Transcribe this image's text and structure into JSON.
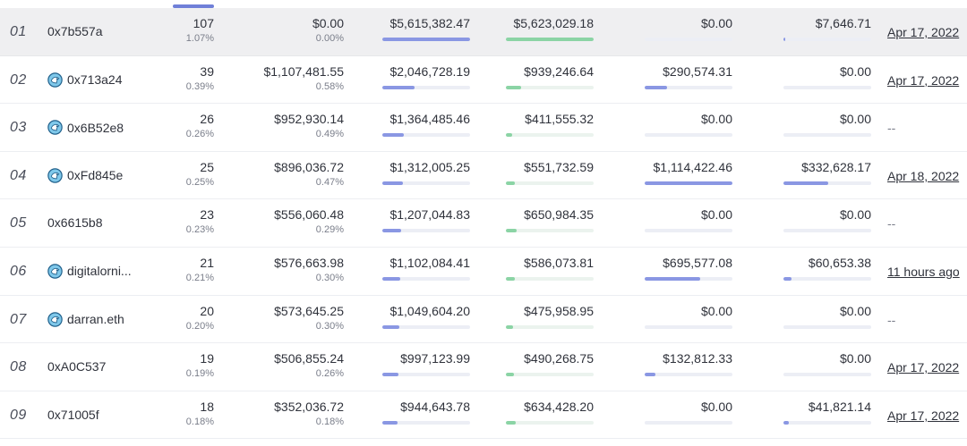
{
  "rows": [
    {
      "rank": "01",
      "address": "0x7b557a",
      "avatar": false,
      "count": "107",
      "count_pct": "1.07%",
      "amount": "$0.00",
      "amount_pct": "0.00%",
      "c1": "$5,615,382.47",
      "c1_fill": 1.0,
      "c2": "$5,623,029.18",
      "c2_fill": 1.0,
      "c3": "$0.00",
      "c3_fill": 0.0,
      "c4": "$7,646.71",
      "c4_fill": 0.02,
      "date": "Apr 17, 2022",
      "highlight": true
    },
    {
      "rank": "02",
      "address": "0x713a24",
      "avatar": true,
      "count": "39",
      "count_pct": "0.39%",
      "amount": "$1,107,481.55",
      "amount_pct": "0.58%",
      "c1": "$2,046,728.19",
      "c1_fill": 0.37,
      "c2": "$939,246.64",
      "c2_fill": 0.17,
      "c3": "$290,574.31",
      "c3_fill": 0.26,
      "c4": "$0.00",
      "c4_fill": 0.0,
      "date": "Apr 17, 2022",
      "highlight": false
    },
    {
      "rank": "03",
      "address": "0x6B52e8",
      "avatar": true,
      "count": "26",
      "count_pct": "0.26%",
      "amount": "$952,930.14",
      "amount_pct": "0.49%",
      "c1": "$1,364,485.46",
      "c1_fill": 0.24,
      "c2": "$411,555.32",
      "c2_fill": 0.07,
      "c3": "$0.00",
      "c3_fill": 0.0,
      "c4": "$0.00",
      "c4_fill": 0.0,
      "date": "--",
      "highlight": false
    },
    {
      "rank": "04",
      "address": "0xFd845e",
      "avatar": true,
      "count": "25",
      "count_pct": "0.25%",
      "amount": "$896,036.72",
      "amount_pct": "0.47%",
      "c1": "$1,312,005.25",
      "c1_fill": 0.23,
      "c2": "$551,732.59",
      "c2_fill": 0.1,
      "c3": "$1,114,422.46",
      "c3_fill": 1.0,
      "c4": "$332,628.17",
      "c4_fill": 0.51,
      "date": "Apr 18, 2022",
      "highlight": false
    },
    {
      "rank": "05",
      "address": "0x6615b8",
      "avatar": false,
      "count": "23",
      "count_pct": "0.23%",
      "amount": "$556,060.48",
      "amount_pct": "0.29%",
      "c1": "$1,207,044.83",
      "c1_fill": 0.21,
      "c2": "$650,984.35",
      "c2_fill": 0.12,
      "c3": "$0.00",
      "c3_fill": 0.0,
      "c4": "$0.00",
      "c4_fill": 0.0,
      "date": "--",
      "highlight": false
    },
    {
      "rank": "06",
      "address": "digitalorni...",
      "avatar": true,
      "count": "21",
      "count_pct": "0.21%",
      "amount": "$576,663.98",
      "amount_pct": "0.30%",
      "c1": "$1,102,084.41",
      "c1_fill": 0.2,
      "c2": "$586,073.81",
      "c2_fill": 0.1,
      "c3": "$695,577.08",
      "c3_fill": 0.63,
      "c4": "$60,653.38",
      "c4_fill": 0.09,
      "date": "11 hours ago",
      "highlight": false
    },
    {
      "rank": "07",
      "address": "darran.eth",
      "avatar": true,
      "count": "20",
      "count_pct": "0.20%",
      "amount": "$573,645.25",
      "amount_pct": "0.30%",
      "c1": "$1,049,604.20",
      "c1_fill": 0.19,
      "c2": "$475,958.95",
      "c2_fill": 0.08,
      "c3": "$0.00",
      "c3_fill": 0.0,
      "c4": "$0.00",
      "c4_fill": 0.0,
      "date": "--",
      "highlight": false
    },
    {
      "rank": "08",
      "address": "0xA0C537",
      "avatar": false,
      "count": "19",
      "count_pct": "0.19%",
      "amount": "$506,855.24",
      "amount_pct": "0.26%",
      "c1": "$997,123.99",
      "c1_fill": 0.18,
      "c2": "$490,268.75",
      "c2_fill": 0.09,
      "c3": "$132,812.33",
      "c3_fill": 0.12,
      "c4": "$0.00",
      "c4_fill": 0.0,
      "date": "Apr 17, 2022",
      "highlight": false
    },
    {
      "rank": "09",
      "address": "0x71005f",
      "avatar": false,
      "count": "18",
      "count_pct": "0.18%",
      "amount": "$352,036.72",
      "amount_pct": "0.18%",
      "c1": "$944,643.78",
      "c1_fill": 0.17,
      "c2": "$634,428.20",
      "c2_fill": 0.11,
      "c3": "$0.00",
      "c3_fill": 0.0,
      "c4": "$41,821.14",
      "c4_fill": 0.06,
      "date": "Apr 17, 2022",
      "highlight": false
    }
  ],
  "avatar_icon": "blue-bird-avatar-icon",
  "colors": {
    "accent_blue": "#8a97e3",
    "accent_green": "#8bd4a5",
    "highlight_row": "#efeff1"
  }
}
